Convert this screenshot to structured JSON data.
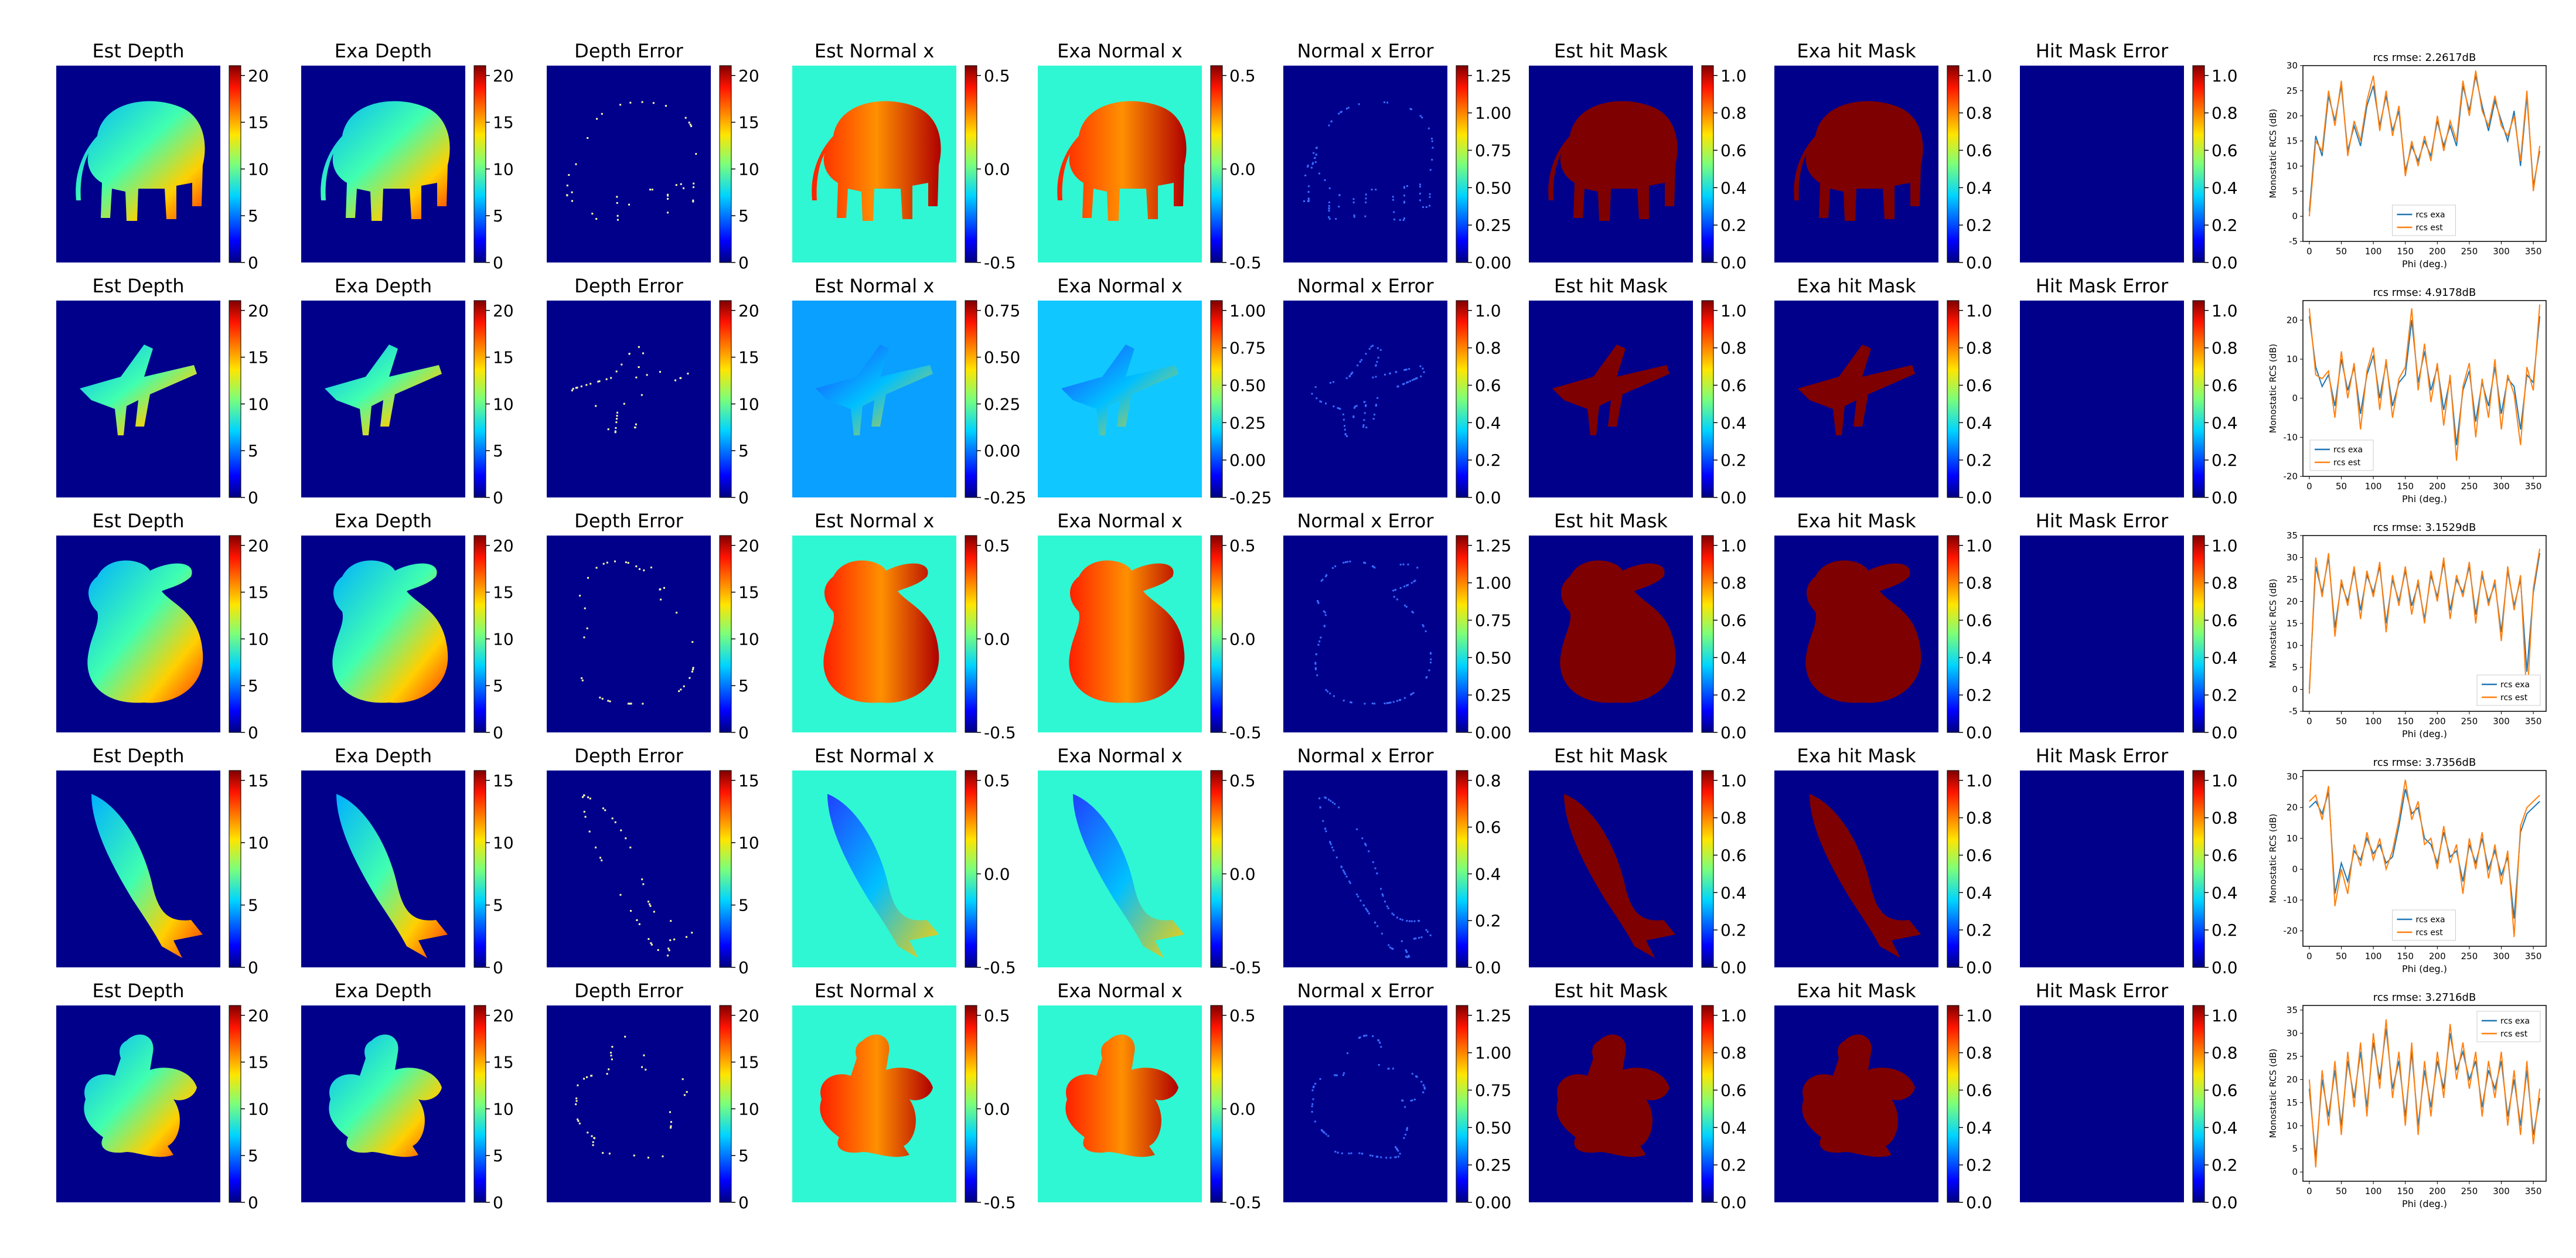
{
  "figure": {
    "panel_titles": [
      "Est Depth",
      "Exa Depth",
      "Depth Error",
      "Est Normal x",
      "Exa Normal x",
      "Normal x Error",
      "Est hit Mask",
      "Exa hit Mask",
      "Hit Mask Error"
    ]
  },
  "colors": {
    "bg_dark_blue": "#00008b",
    "normal_bg_cyan": "#2ff7d3",
    "mask_red": "#7f0000",
    "rcs_exa": "#1f77b4",
    "rcs_est": "#ff7f0e"
  },
  "rows": [
    {
      "object": "elephant",
      "colorbars": [
        [
          "0",
          "5",
          "10",
          "15",
          "20"
        ],
        [
          "0",
          "5",
          "10",
          "15",
          "20"
        ],
        [
          "0",
          "5",
          "10",
          "15",
          "20"
        ],
        [
          "-0.5",
          "0.0",
          "0.5"
        ],
        [
          "-0.5",
          "0.0",
          "0.5"
        ],
        [
          "0.00",
          "0.25",
          "0.50",
          "0.75",
          "1.00",
          "1.25"
        ],
        [
          "0.0",
          "0.2",
          "0.4",
          "0.6",
          "0.8",
          "1.0"
        ],
        [
          "0.0",
          "0.2",
          "0.4",
          "0.6",
          "0.8",
          "1.0"
        ],
        [
          "0.0",
          "0.2",
          "0.4",
          "0.6",
          "0.8",
          "1.0"
        ]
      ],
      "normal_bg": "#2ff7d3"
    },
    {
      "object": "airplane",
      "colorbars": [
        [
          "0",
          "5",
          "10",
          "15",
          "20"
        ],
        [
          "0",
          "5",
          "10",
          "15",
          "20"
        ],
        [
          "0",
          "5",
          "10",
          "15",
          "20"
        ],
        [
          "-0.25",
          "0.00",
          "0.25",
          "0.50",
          "0.75"
        ],
        [
          "-0.25",
          "0.00",
          "0.25",
          "0.50",
          "0.75",
          "1.00"
        ],
        [
          "0.0",
          "0.2",
          "0.4",
          "0.6",
          "0.8",
          "1.0"
        ],
        [
          "0.0",
          "0.2",
          "0.4",
          "0.6",
          "0.8",
          "1.0"
        ],
        [
          "0.0",
          "0.2",
          "0.4",
          "0.6",
          "0.8",
          "1.0"
        ],
        [
          "0.0",
          "0.2",
          "0.4",
          "0.6",
          "0.8",
          "1.0"
        ]
      ],
      "normal_bg": "#0aa0ff"
    },
    {
      "object": "bunny",
      "colorbars": [
        [
          "0",
          "5",
          "10",
          "15",
          "20"
        ],
        [
          "0",
          "5",
          "10",
          "15",
          "20"
        ],
        [
          "0",
          "5",
          "10",
          "15",
          "20"
        ],
        [
          "-0.5",
          "0.0",
          "0.5"
        ],
        [
          "-0.5",
          "0.0",
          "0.5"
        ],
        [
          "0.00",
          "0.25",
          "0.50",
          "0.75",
          "1.00",
          "1.25"
        ],
        [
          "0.0",
          "0.2",
          "0.4",
          "0.6",
          "0.8",
          "1.0"
        ],
        [
          "0.0",
          "0.2",
          "0.4",
          "0.6",
          "0.8",
          "1.0"
        ],
        [
          "0.0",
          "0.2",
          "0.4",
          "0.6",
          "0.8",
          "1.0"
        ]
      ],
      "normal_bg": "#2ff7d3"
    },
    {
      "object": "fish",
      "colorbars": [
        [
          "0",
          "5",
          "10",
          "15"
        ],
        [
          "0",
          "5",
          "10",
          "15"
        ],
        [
          "0",
          "5",
          "10",
          "15"
        ],
        [
          "-0.5",
          "0.0",
          "0.5"
        ],
        [
          "-0.5",
          "0.0",
          "0.5"
        ],
        [
          "0.0",
          "0.2",
          "0.4",
          "0.6",
          "0.8"
        ],
        [
          "0.0",
          "0.2",
          "0.4",
          "0.6",
          "0.8",
          "1.0"
        ],
        [
          "0.0",
          "0.2",
          "0.4",
          "0.6",
          "0.8",
          "1.0"
        ],
        [
          "0.0",
          "0.2",
          "0.4",
          "0.6",
          "0.8",
          "1.0"
        ]
      ],
      "normal_bg": "#2ff7d3"
    },
    {
      "object": "dragon",
      "colorbars": [
        [
          "0",
          "5",
          "10",
          "15",
          "20"
        ],
        [
          "0",
          "5",
          "10",
          "15",
          "20"
        ],
        [
          "0",
          "5",
          "10",
          "15",
          "20"
        ],
        [
          "-0.5",
          "0.0",
          "0.5"
        ],
        [
          "-0.5",
          "0.0",
          "0.5"
        ],
        [
          "0.00",
          "0.25",
          "0.50",
          "0.75",
          "1.00",
          "1.25"
        ],
        [
          "0.0",
          "0.2",
          "0.4",
          "0.6",
          "0.8",
          "1.0"
        ],
        [
          "0.0",
          "0.2",
          "0.4",
          "0.6",
          "0.8",
          "1.0"
        ],
        [
          "0.0",
          "0.2",
          "0.4",
          "0.6",
          "0.8",
          "1.0"
        ]
      ],
      "normal_bg": "#2ff7d3"
    }
  ],
  "chart_data": [
    {
      "type": "line",
      "title": "rcs rmse: 2.2617dB",
      "xlabel": "Phi (deg.)",
      "ylabel": "Monostatic RCS (dB)",
      "xlim": [
        -10,
        370
      ],
      "ylim": [
        -5,
        30
      ],
      "xticks": [
        "0",
        "50",
        "100",
        "150",
        "200",
        "250",
        "300",
        "350"
      ],
      "yticks": [
        "-5",
        "0",
        "5",
        "10",
        "15",
        "20",
        "25",
        "30"
      ],
      "legend_position": "lower-center",
      "x": [
        0,
        10,
        20,
        30,
        40,
        50,
        60,
        70,
        80,
        90,
        100,
        110,
        120,
        130,
        140,
        150,
        160,
        170,
        180,
        190,
        200,
        210,
        220,
        230,
        240,
        250,
        260,
        270,
        280,
        290,
        300,
        310,
        320,
        330,
        340,
        350,
        360
      ],
      "series": [
        {
          "name": "rcs exa",
          "values": [
            1,
            16,
            12,
            24,
            19,
            26,
            13,
            18,
            14,
            22,
            26,
            18,
            24,
            17,
            21,
            9,
            14,
            11,
            15,
            12,
            19,
            14,
            18,
            14,
            26,
            21,
            28,
            22,
            17,
            23,
            19,
            15,
            21,
            10,
            24,
            6,
            13
          ]
        },
        {
          "name": "rcs est",
          "values": [
            0,
            15,
            13,
            25,
            18,
            27,
            12,
            19,
            15,
            23,
            28,
            17,
            25,
            16,
            22,
            8,
            15,
            10,
            16,
            11,
            20,
            13,
            19,
            15,
            27,
            20,
            29,
            21,
            18,
            24,
            18,
            16,
            20,
            11,
            25,
            5,
            14
          ]
        }
      ]
    },
    {
      "type": "line",
      "title": "rcs rmse: 4.9178dB",
      "xlabel": "Phi (deg.)",
      "ylabel": "Monostatic RCS (dB)",
      "xlim": [
        -10,
        370
      ],
      "ylim": [
        -20,
        25
      ],
      "xticks": [
        "0",
        "50",
        "100",
        "150",
        "200",
        "250",
        "300",
        "350"
      ],
      "yticks": [
        "-20",
        "-10",
        "0",
        "10",
        "20"
      ],
      "legend_position": "lower-left",
      "x": [
        0,
        10,
        20,
        30,
        40,
        50,
        60,
        70,
        80,
        90,
        100,
        110,
        120,
        130,
        140,
        150,
        160,
        170,
        180,
        190,
        200,
        210,
        220,
        230,
        240,
        250,
        260,
        270,
        280,
        290,
        300,
        310,
        320,
        330,
        340,
        350,
        360
      ],
      "series": [
        {
          "name": "rcs exa",
          "values": [
            21,
            8,
            3,
            6,
            -2,
            10,
            2,
            8,
            -4,
            6,
            11,
            0,
            9,
            -2,
            4,
            6,
            20,
            4,
            12,
            2,
            8,
            -3,
            5,
            -12,
            2,
            7,
            -6,
            4,
            -2,
            8,
            -4,
            5,
            3,
            -8,
            6,
            4,
            21
          ]
        },
        {
          "name": "rcs est",
          "values": [
            23,
            6,
            5,
            7,
            -5,
            12,
            0,
            9,
            -8,
            7,
            13,
            -3,
            10,
            -5,
            5,
            8,
            23,
            2,
            14,
            -1,
            9,
            -7,
            6,
            -16,
            3,
            9,
            -10,
            5,
            -5,
            10,
            -8,
            6,
            1,
            -12,
            8,
            2,
            24
          ]
        }
      ]
    },
    {
      "type": "line",
      "title": "rcs rmse: 3.1529dB",
      "xlabel": "Phi (deg.)",
      "ylabel": "Monostatic RCS (dB)",
      "xlim": [
        -10,
        370
      ],
      "ylim": [
        -5,
        35
      ],
      "xticks": [
        "0",
        "50",
        "100",
        "150",
        "200",
        "250",
        "300",
        "350"
      ],
      "yticks": [
        "-5",
        "0",
        "5",
        "10",
        "15",
        "20",
        "25",
        "30",
        "35"
      ],
      "legend_position": "lower-right",
      "x": [
        0,
        10,
        20,
        30,
        40,
        50,
        60,
        70,
        80,
        90,
        100,
        110,
        120,
        130,
        140,
        150,
        160,
        170,
        180,
        190,
        200,
        210,
        220,
        230,
        240,
        250,
        260,
        270,
        280,
        290,
        300,
        310,
        320,
        330,
        340,
        350,
        360
      ],
      "series": [
        {
          "name": "rcs exa",
          "values": [
            0,
            28,
            22,
            30,
            14,
            24,
            20,
            27,
            18,
            26,
            22,
            28,
            15,
            25,
            20,
            27,
            19,
            24,
            16,
            26,
            21,
            29,
            18,
            25,
            22,
            28,
            17,
            26,
            20,
            24,
            13,
            27,
            19,
            25,
            4,
            22,
            31
          ]
        },
        {
          "name": "rcs est",
          "values": [
            -1,
            30,
            21,
            31,
            12,
            25,
            19,
            28,
            16,
            27,
            21,
            29,
            13,
            26,
            19,
            28,
            17,
            25,
            15,
            27,
            20,
            30,
            16,
            26,
            21,
            29,
            15,
            27,
            19,
            25,
            11,
            28,
            18,
            26,
            -3,
            23,
            32
          ]
        }
      ]
    },
    {
      "type": "line",
      "title": "rcs rmse: 3.7356dB",
      "xlabel": "Phi (deg.)",
      "ylabel": "Monostatic RCS (dB)",
      "xlim": [
        -10,
        370
      ],
      "ylim": [
        -25,
        32
      ],
      "xticks": [
        "0",
        "50",
        "100",
        "150",
        "200",
        "250",
        "300",
        "350"
      ],
      "yticks": [
        "-20",
        "-10",
        "0",
        "10",
        "20",
        "30"
      ],
      "legend_position": "lower-center",
      "x": [
        0,
        10,
        20,
        30,
        40,
        50,
        60,
        70,
        80,
        90,
        100,
        110,
        120,
        130,
        140,
        150,
        160,
        170,
        180,
        190,
        200,
        210,
        220,
        230,
        240,
        250,
        260,
        270,
        280,
        290,
        300,
        310,
        320,
        330,
        340,
        350,
        360
      ],
      "series": [
        {
          "name": "rcs exa",
          "values": [
            20,
            22,
            18,
            25,
            -8,
            2,
            -4,
            6,
            3,
            10,
            5,
            8,
            2,
            4,
            14,
            26,
            18,
            20,
            10,
            8,
            2,
            12,
            4,
            6,
            -4,
            8,
            2,
            10,
            0,
            6,
            -2,
            4,
            -16,
            12,
            18,
            20,
            22
          ]
        },
        {
          "name": "rcs est",
          "values": [
            22,
            24,
            16,
            27,
            -12,
            0,
            -8,
            8,
            1,
            12,
            3,
            10,
            0,
            6,
            16,
            29,
            16,
            22,
            8,
            10,
            0,
            14,
            2,
            8,
            -8,
            10,
            0,
            12,
            -3,
            8,
            -5,
            6,
            -22,
            14,
            20,
            22,
            24
          ]
        }
      ]
    },
    {
      "type": "line",
      "title": "rcs rmse: 3.2716dB",
      "xlabel": "Phi (deg.)",
      "ylabel": "Monostatic RCS (dB)",
      "xlim": [
        -10,
        370
      ],
      "ylim": [
        -2,
        36
      ],
      "xticks": [
        "0",
        "50",
        "100",
        "150",
        "200",
        "250",
        "300",
        "350"
      ],
      "yticks": [
        "0",
        "5",
        "10",
        "15",
        "20",
        "25",
        "30",
        "35"
      ],
      "legend_position": "top-right",
      "x": [
        0,
        10,
        20,
        30,
        40,
        50,
        60,
        70,
        80,
        90,
        100,
        110,
        120,
        130,
        140,
        150,
        160,
        170,
        180,
        190,
        200,
        210,
        220,
        230,
        240,
        250,
        260,
        270,
        280,
        290,
        300,
        310,
        320,
        330,
        340,
        350,
        360
      ],
      "series": [
        {
          "name": "rcs exa",
          "values": [
            18,
            3,
            20,
            12,
            22,
            10,
            24,
            16,
            26,
            14,
            28,
            20,
            31,
            18,
            24,
            12,
            26,
            10,
            22,
            14,
            24,
            18,
            30,
            22,
            26,
            20,
            24,
            14,
            22,
            18,
            24,
            12,
            20,
            10,
            22,
            8,
            16
          ]
        },
        {
          "name": "rcs est",
          "values": [
            20,
            1,
            22,
            10,
            24,
            8,
            26,
            14,
            28,
            12,
            30,
            18,
            33,
            16,
            26,
            10,
            28,
            8,
            24,
            12,
            26,
            16,
            32,
            20,
            28,
            18,
            26,
            12,
            24,
            16,
            26,
            10,
            22,
            8,
            24,
            6,
            18
          ]
        }
      ]
    }
  ]
}
